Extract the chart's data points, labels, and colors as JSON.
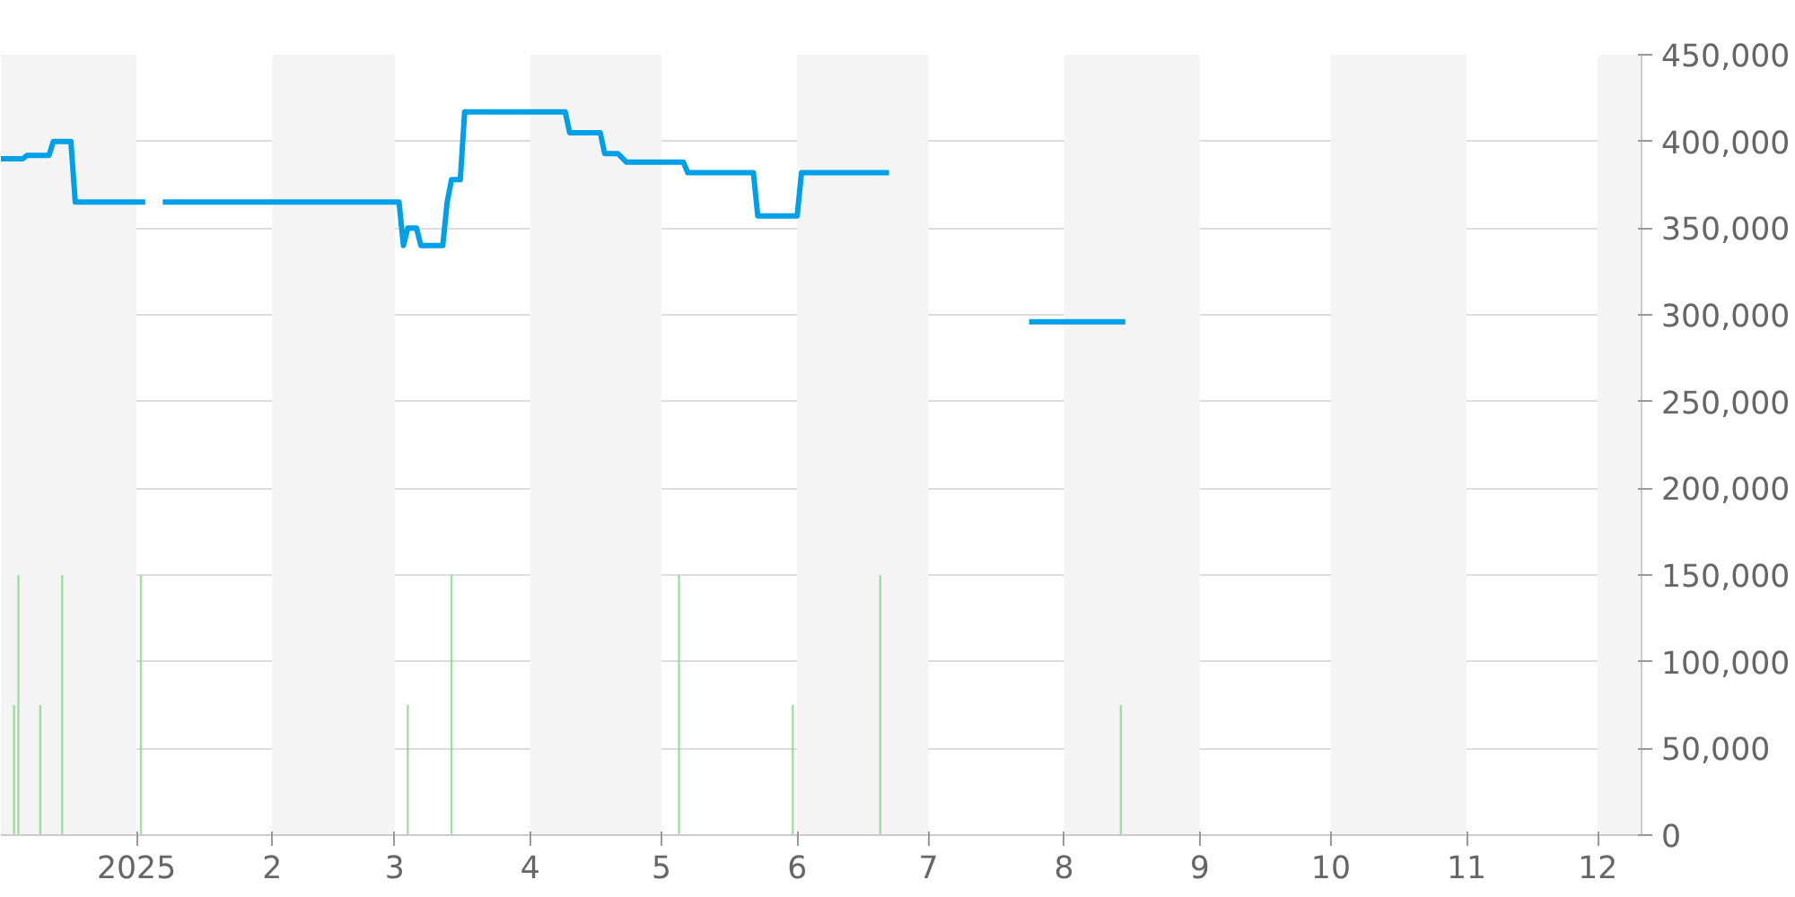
{
  "chart_data": {
    "type": "line",
    "xlim": [
      "2024-12-01",
      "2025-12-11"
    ],
    "xticks": [
      {
        "value": "2025-01-01",
        "label": "2025"
      },
      {
        "value": "2025-02-01",
        "label": "2"
      },
      {
        "value": "2025-03-01",
        "label": "3"
      },
      {
        "value": "2025-04-01",
        "label": "4"
      },
      {
        "value": "2025-05-01",
        "label": "5"
      },
      {
        "value": "2025-06-01",
        "label": "6"
      },
      {
        "value": "2025-07-01",
        "label": "7"
      },
      {
        "value": "2025-08-01",
        "label": "8"
      },
      {
        "value": "2025-09-01",
        "label": "9"
      },
      {
        "value": "2025-10-01",
        "label": "10"
      },
      {
        "value": "2025-11-01",
        "label": "11"
      },
      {
        "value": "2025-12-01",
        "label": "12"
      }
    ],
    "ylim": [
      0,
      450000
    ],
    "yticks": [
      0,
      {
        "value": 50000,
        "label": "50,000"
      },
      {
        "value": 100000,
        "label": "100,000"
      },
      {
        "value": 150000,
        "label": "150,000"
      },
      {
        "value": 200000,
        "label": "200,000"
      },
      {
        "value": 250000,
        "label": "250,000"
      },
      {
        "value": 300000,
        "label": "300,000"
      },
      {
        "value": 350000,
        "label": "350,000"
      },
      {
        "value": 400000,
        "label": "400,000"
      },
      {
        "value": 450000,
        "label": "450,000"
      }
    ],
    "grid": "y",
    "bands": [
      {
        "axis": "x",
        "from": "2024-12-01",
        "to": "2025-01-01",
        "color": "#f4f4f4"
      },
      {
        "axis": "x",
        "from": "2025-02-01",
        "to": "2025-03-01",
        "color": "#f4f4f4"
      },
      {
        "axis": "x",
        "from": "2025-04-01",
        "to": "2025-05-01",
        "color": "#f4f4f4"
      },
      {
        "axis": "x",
        "from": "2025-06-01",
        "to": "2025-07-01",
        "color": "#f4f4f4"
      },
      {
        "axis": "x",
        "from": "2025-08-01",
        "to": "2025-09-01",
        "color": "#f4f4f4"
      },
      {
        "axis": "x",
        "from": "2025-10-01",
        "to": "2025-11-01",
        "color": "#f4f4f4"
      },
      {
        "axis": "x",
        "from": "2025-12-01",
        "to": "2025-12-11",
        "color": "#f4f4f4"
      }
    ],
    "series": [
      {
        "type": "bar",
        "color": "#8fd68f",
        "x": [
          "2024-12-04",
          "2024-12-05",
          "2024-12-10",
          "2024-12-15",
          "2025-01-02",
          "2025-03-04",
          "2025-03-14",
          "2025-05-05",
          "2025-05-31",
          "2025-06-20",
          "2025-08-14"
        ],
        "values": [
          75000,
          150000,
          75000,
          150000,
          150000,
          75000,
          150000,
          150000,
          75000,
          150000,
          75000
        ]
      },
      {
        "color": "#00a0e9",
        "x": [
          "2024-12-01",
          "2024-12-06",
          "2024-12-07",
          "2024-12-12",
          "2024-12-13",
          "2024-12-17",
          "2024-12-18",
          "2025-01-03",
          "2025-01-05",
          "2025-01-07",
          "2025-03-02",
          "2025-03-03",
          "2025-03-04",
          "2025-03-06",
          "2025-03-07",
          "2025-03-12",
          "2025-03-13",
          "2025-03-14",
          "2025-03-16",
          "2025-03-17",
          "2025-04-09",
          "2025-04-10",
          "2025-04-17",
          "2025-04-18",
          "2025-04-21",
          "2025-04-23",
          "2025-05-06",
          "2025-05-07",
          "2025-05-22",
          "2025-05-23",
          "2025-06-01",
          "2025-06-02",
          "2025-06-22",
          "2025-07-01",
          "2025-07-24",
          "2025-08-15"
        ],
        "values": [
          390000,
          390000,
          392000,
          392000,
          400000,
          400000,
          365000,
          365000,
          null,
          365000,
          365000,
          340000,
          350000,
          350000,
          340000,
          340000,
          365000,
          378000,
          378000,
          417000,
          417000,
          405000,
          405000,
          393000,
          393000,
          388000,
          388000,
          382000,
          382000,
          357000,
          357000,
          382000,
          382000,
          null,
          296000,
          296000
        ]
      }
    ]
  }
}
